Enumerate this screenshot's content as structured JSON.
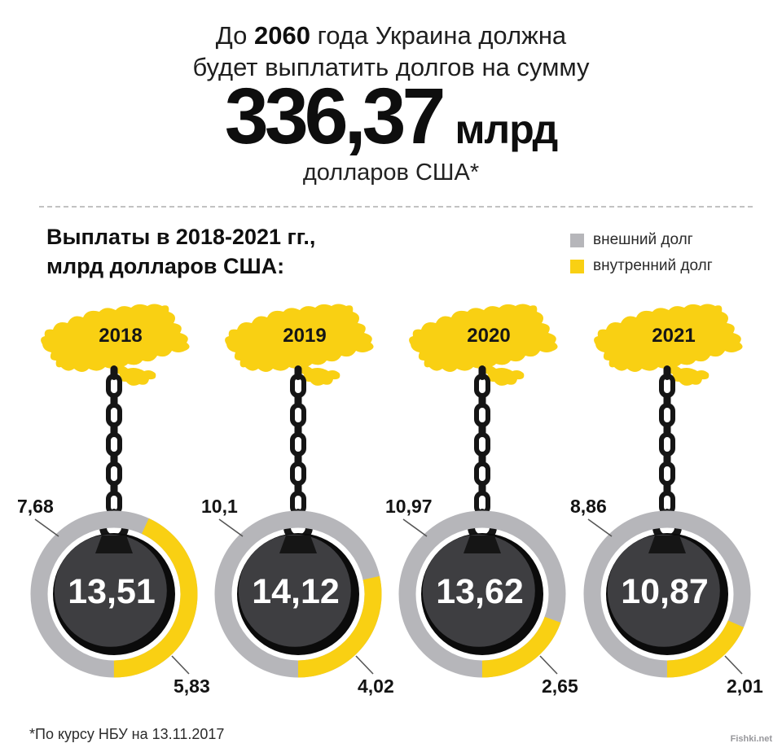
{
  "header": {
    "title_prefix": "До ",
    "title_year": "2060",
    "title_line1_suffix": " года Украина должна",
    "title_line2": "будет выплатить долгов на сумму",
    "amount": "336,37",
    "amount_unit": "млрд",
    "amount_currency": "долларов США*"
  },
  "section": {
    "title_line1": "Выплаты в 2018-2021 гг.,",
    "title_line2": "млрд долларов США:",
    "legend": [
      {
        "label": "внешний долг",
        "color": "#b6b6ba"
      },
      {
        "label": "внутренний долг",
        "color": "#f9d013"
      }
    ]
  },
  "chart_data": {
    "type": "pie",
    "variant": "donut ring per year (wrecking-ball infographic)",
    "title": "Выплаты в 2018-2021 гг., млрд долларов США:",
    "categories": [
      "2018",
      "2019",
      "2020",
      "2021"
    ],
    "series": [
      {
        "name": "внешний долг",
        "color": "#b6b6ba",
        "values": [
          7.68,
          10.1,
          10.97,
          8.86
        ]
      },
      {
        "name": "внутренний долг",
        "color": "#f9d013",
        "values": [
          5.83,
          4.02,
          2.65,
          2.01
        ]
      }
    ],
    "totals": [
      13.51,
      14.12,
      13.62,
      10.87
    ],
    "units": "млрд долларов США",
    "legend_position": "top-right"
  },
  "columns": [
    {
      "year": "2018",
      "total_label": "13,51",
      "external_label": "7,68",
      "internal_label": "5,83",
      "total": 13.51,
      "external": 7.68,
      "internal": 5.83
    },
    {
      "year": "2019",
      "total_label": "14,12",
      "external_label": "10,1",
      "internal_label": "4,02",
      "total": 14.12,
      "external": 10.1,
      "internal": 4.02
    },
    {
      "year": "2020",
      "total_label": "13,62",
      "external_label": "10,97",
      "internal_label": "2,65",
      "total": 13.62,
      "external": 10.97,
      "internal": 2.65
    },
    {
      "year": "2021",
      "total_label": "10,87",
      "external_label": "8,86",
      "internal_label": "2,01",
      "total": 10.87,
      "external": 8.86,
      "internal": 2.01
    }
  ],
  "footer": {
    "note": "*По курсу НБУ на 13.11.2017",
    "watermark": "Fishki.net"
  },
  "colors": {
    "yellow": "#f9d013",
    "gray": "#b6b6ba",
    "ball": "#3e3e41",
    "ball_shadow": "#0b0b0b",
    "background": "#ffffff"
  }
}
